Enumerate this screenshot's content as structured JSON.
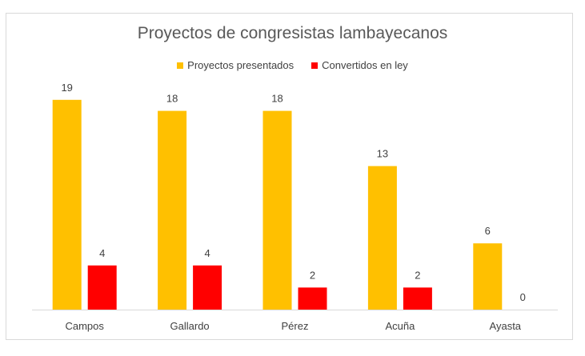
{
  "chart_data": {
    "type": "bar",
    "title": "Proyectos de congresistas lambayecanos",
    "categories": [
      "Campos",
      "Gallardo",
      "Pérez",
      "Acuña",
      "Ayasta"
    ],
    "series": [
      {
        "name": "Proyectos presentados",
        "color": "#FFC000",
        "values": [
          19,
          18,
          18,
          13,
          6
        ]
      },
      {
        "name": "Convertidos en ley",
        "color": "#FF0000",
        "values": [
          4,
          4,
          2,
          2,
          0
        ]
      }
    ],
    "ylim": [
      0,
      20
    ],
    "grid": false,
    "legend_position": "top",
    "data_labels": true
  }
}
